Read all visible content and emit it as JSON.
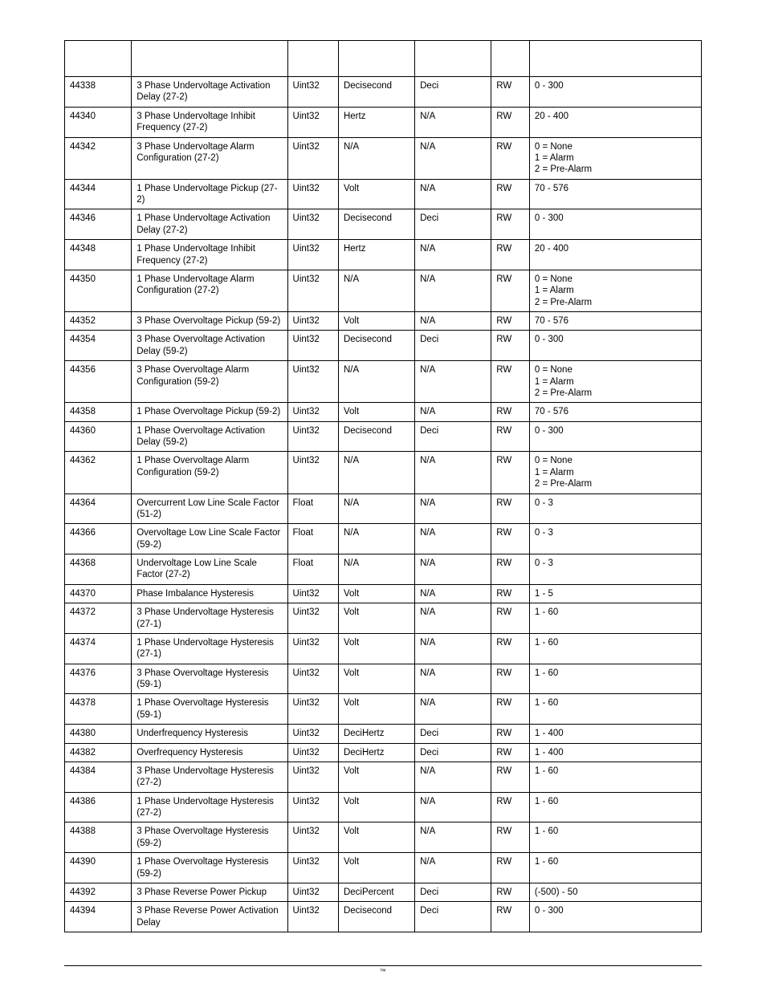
{
  "table": {
    "rows": [
      {
        "reg": "44338",
        "desc": "3 Phase Undervoltage Activation Delay (27-2)",
        "type": "Uint32",
        "unit": "Decisecond",
        "scale": "Deci",
        "access": "RW",
        "range": "0 - 300"
      },
      {
        "reg": "44340",
        "desc": "3 Phase Undervoltage Inhibit Frequency (27-2)",
        "type": "Uint32",
        "unit": "Hertz",
        "scale": "N/A",
        "access": "RW",
        "range": "20 - 400"
      },
      {
        "reg": "44342",
        "desc": "3 Phase Undervoltage Alarm Configuration (27-2)",
        "type": "Uint32",
        "unit": "N/A",
        "scale": "N/A",
        "access": "RW",
        "range": "0 = None\n1 = Alarm\n2 = Pre-Alarm"
      },
      {
        "reg": "44344",
        "desc": "1 Phase Undervoltage Pickup (27-2)",
        "type": "Uint32",
        "unit": "Volt",
        "scale": "N/A",
        "access": "RW",
        "range": "70 - 576"
      },
      {
        "reg": "44346",
        "desc": "1 Phase Undervoltage Activation Delay (27-2)",
        "type": "Uint32",
        "unit": "Decisecond",
        "scale": "Deci",
        "access": "RW",
        "range": "0 - 300"
      },
      {
        "reg": "44348",
        "desc": "1 Phase Undervoltage Inhibit Frequency (27-2)",
        "type": "Uint32",
        "unit": "Hertz",
        "scale": "N/A",
        "access": "RW",
        "range": "20 - 400"
      },
      {
        "reg": "44350",
        "desc": "1 Phase Undervoltage Alarm Configuration (27-2)",
        "type": "Uint32",
        "unit": "N/A",
        "scale": "N/A",
        "access": "RW",
        "range": "0 = None\n1 = Alarm\n2 = Pre-Alarm"
      },
      {
        "reg": "44352",
        "desc": "3 Phase Overvoltage Pickup (59-2)",
        "type": "Uint32",
        "unit": "Volt",
        "scale": "N/A",
        "access": "RW",
        "range": "70 - 576"
      },
      {
        "reg": "44354",
        "desc": "3 Phase Overvoltage Activation Delay (59-2)",
        "type": "Uint32",
        "unit": "Decisecond",
        "scale": "Deci",
        "access": "RW",
        "range": "0 - 300"
      },
      {
        "reg": "44356",
        "desc": "3 Phase Overvoltage Alarm Configuration (59-2)",
        "type": "Uint32",
        "unit": "N/A",
        "scale": "N/A",
        "access": "RW",
        "range": "0 = None\n1 = Alarm\n2 = Pre-Alarm"
      },
      {
        "reg": "44358",
        "desc": "1 Phase Overvoltage Pickup (59-2)",
        "type": "Uint32",
        "unit": "Volt",
        "scale": "N/A",
        "access": "RW",
        "range": "70 - 576"
      },
      {
        "reg": "44360",
        "desc": "1 Phase Overvoltage Activation Delay (59-2)",
        "type": "Uint32",
        "unit": "Decisecond",
        "scale": "Deci",
        "access": "RW",
        "range": "0 - 300"
      },
      {
        "reg": "44362",
        "desc": "1 Phase Overvoltage Alarm Configuration (59-2)",
        "type": "Uint32",
        "unit": "N/A",
        "scale": "N/A",
        "access": "RW",
        "range": "0 = None\n1 = Alarm\n2 = Pre-Alarm"
      },
      {
        "reg": "44364",
        "desc": "Overcurrent Low Line Scale Factor (51-2)",
        "type": "Float",
        "unit": "N/A",
        "scale": "N/A",
        "access": "RW",
        "range": "0 - 3"
      },
      {
        "reg": "44366",
        "desc": "Overvoltage Low Line Scale Factor (59-2)",
        "type": "Float",
        "unit": "N/A",
        "scale": "N/A",
        "access": "RW",
        "range": "0 - 3"
      },
      {
        "reg": "44368",
        "desc": "Undervoltage Low Line Scale Factor (27-2)",
        "type": "Float",
        "unit": "N/A",
        "scale": "N/A",
        "access": "RW",
        "range": "0 - 3"
      },
      {
        "reg": "44370",
        "desc": "Phase Imbalance Hysteresis",
        "type": "Uint32",
        "unit": "Volt",
        "scale": "N/A",
        "access": "RW",
        "range": "1 - 5"
      },
      {
        "reg": "44372",
        "desc": "3 Phase Undervoltage Hysteresis (27-1)",
        "type": "Uint32",
        "unit": "Volt",
        "scale": "N/A",
        "access": "RW",
        "range": "1 - 60"
      },
      {
        "reg": "44374",
        "desc": "1 Phase Undervoltage Hysteresis (27-1)",
        "type": "Uint32",
        "unit": "Volt",
        "scale": "N/A",
        "access": "RW",
        "range": "1 - 60"
      },
      {
        "reg": "44376",
        "desc": "3 Phase Overvoltage Hysteresis (59-1)",
        "type": "Uint32",
        "unit": "Volt",
        "scale": "N/A",
        "access": "RW",
        "range": "1 - 60"
      },
      {
        "reg": "44378",
        "desc": "1 Phase Overvoltage Hysteresis (59-1)",
        "type": "Uint32",
        "unit": "Volt",
        "scale": "N/A",
        "access": "RW",
        "range": "1 - 60"
      },
      {
        "reg": "44380",
        "desc": "Underfrequency Hysteresis",
        "type": "Uint32",
        "unit": "DeciHertz",
        "scale": "Deci",
        "access": "RW",
        "range": "1 - 400"
      },
      {
        "reg": "44382",
        "desc": "Overfrequency Hysteresis",
        "type": "Uint32",
        "unit": "DeciHertz",
        "scale": "Deci",
        "access": "RW",
        "range": "1 - 400"
      },
      {
        "reg": "44384",
        "desc": "3 Phase Undervoltage Hysteresis (27-2)",
        "type": "Uint32",
        "unit": "Volt",
        "scale": "N/A",
        "access": "RW",
        "range": "1 - 60"
      },
      {
        "reg": "44386",
        "desc": "1 Phase Undervoltage Hysteresis (27-2)",
        "type": "Uint32",
        "unit": "Volt",
        "scale": "N/A",
        "access": "RW",
        "range": "1 - 60"
      },
      {
        "reg": "44388",
        "desc": "3 Phase Overvoltage Hysteresis (59-2)",
        "type": "Uint32",
        "unit": "Volt",
        "scale": "N/A",
        "access": "RW",
        "range": "1 - 60"
      },
      {
        "reg": "44390",
        "desc": "1 Phase Overvoltage Hysteresis (59-2)",
        "type": "Uint32",
        "unit": "Volt",
        "scale": "N/A",
        "access": "RW",
        "range": "1 - 60"
      },
      {
        "reg": "44392",
        "desc": "3 Phase Reverse Power Pickup",
        "type": "Uint32",
        "unit": "DeciPercent",
        "scale": "Deci",
        "access": "RW",
        "range": "(-500) - 50"
      },
      {
        "reg": "44394",
        "desc": "3 Phase Reverse Power Activation Delay",
        "type": "Uint32",
        "unit": "Decisecond",
        "scale": "Deci",
        "access": "RW",
        "range": "0 - 300"
      }
    ]
  },
  "footer": {
    "mark": "™"
  }
}
